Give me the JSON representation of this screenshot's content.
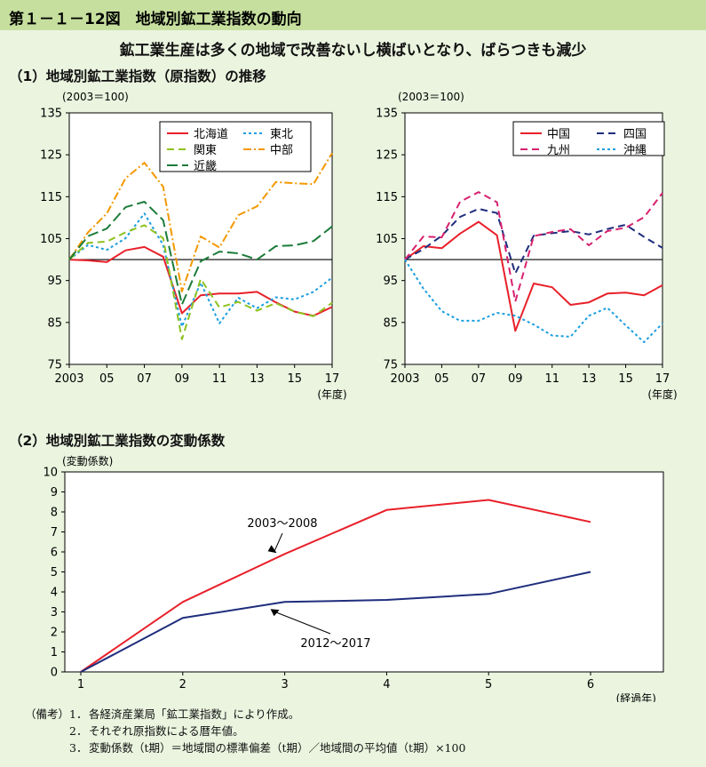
{
  "header": {
    "title": "第１－１－12図　地域別鉱工業指数の動向",
    "subtitle": "鉱工業生産は多くの地域で改善ないし横ばいとなり、ばらつきも減少",
    "section1": "（1）地域別鉱工業指数（原指数）の推移",
    "section2": "（2）地域別鉱工業指数の変動係数"
  },
  "chart_data": [
    {
      "type": "line",
      "unit_label": "(2003＝100)",
      "x_tick_labels": [
        "2003",
        "05",
        "07",
        "09",
        "11",
        "13",
        "15",
        "17"
      ],
      "x_unit": "(年度)",
      "y_ticks": [
        "135",
        "125",
        "115",
        "105",
        "95",
        "85",
        "75"
      ],
      "ylim": [
        75,
        135
      ],
      "baseline": 100,
      "x": [
        2003,
        2004,
        2005,
        2006,
        2007,
        2008,
        2009,
        2010,
        2011,
        2012,
        2013,
        2014,
        2015,
        2016,
        2017
      ],
      "series": [
        {
          "name": "北海道",
          "color": "#e8202a",
          "dash": "",
          "values": [
            100,
            99.8,
            99.4,
            102.2,
            103.0,
            100.7,
            87.2,
            91.5,
            91.9,
            91.9,
            92.3,
            89.8,
            87.6,
            86.6,
            88.7
          ]
        },
        {
          "name": "東北",
          "color": "#1a9ee0",
          "dash": "3,3",
          "values": [
            100,
            103.5,
            102.3,
            105.1,
            111.0,
            103.5,
            84.0,
            94.5,
            84.8,
            90.9,
            88.4,
            91.0,
            90.5,
            92.3,
            95.7
          ]
        },
        {
          "name": "関東",
          "color": "#8dc21f",
          "dash": "8,5",
          "values": [
            100,
            104.0,
            104.3,
            106.5,
            108.2,
            105.1,
            81.0,
            95.4,
            88.6,
            89.9,
            87.8,
            89.6,
            87.6,
            86.5,
            89.7
          ]
        },
        {
          "name": "中部",
          "color": "#f39800",
          "dash": "9,3,2,3",
          "values": [
            100,
            106.5,
            111.0,
            119.4,
            123.1,
            117.4,
            92.4,
            105.5,
            102.9,
            110.6,
            112.7,
            118.5,
            118.2,
            118.0,
            125.4
          ]
        },
        {
          "name": "近畿",
          "color": "#1c7c3a",
          "dash": "12,5",
          "values": [
            100,
            105.6,
            107.4,
            112.5,
            113.8,
            109.4,
            89.3,
            99.6,
            101.9,
            101.5,
            100.0,
            103.2,
            103.4,
            104.4,
            107.9
          ]
        }
      ]
    },
    {
      "type": "line",
      "unit_label": "(2003＝100)",
      "x_tick_labels": [
        "2003",
        "05",
        "07",
        "09",
        "11",
        "13",
        "15",
        "17"
      ],
      "x_unit": "(年度)",
      "y_ticks": [
        "135",
        "125",
        "115",
        "105",
        "95",
        "85",
        "75"
      ],
      "ylim": [
        75,
        135
      ],
      "baseline": 100,
      "x": [
        2003,
        2004,
        2005,
        2006,
        2007,
        2008,
        2009,
        2010,
        2011,
        2012,
        2013,
        2014,
        2015,
        2016,
        2017
      ],
      "series": [
        {
          "name": "中国",
          "color": "#e8202a",
          "dash": "",
          "values": [
            100,
            103.2,
            102.7,
            106.2,
            109.0,
            105.8,
            83.0,
            94.3,
            93.4,
            89.2,
            89.8,
            91.9,
            92.1,
            91.5,
            93.9
          ]
        },
        {
          "name": "四国",
          "color": "#1f2d7d",
          "dash": "8,5",
          "values": [
            100,
            102.5,
            105.7,
            110.2,
            112.1,
            111.1,
            96.7,
            105.7,
            106.3,
            106.8,
            106.0,
            107.3,
            108.3,
            105.4,
            102.8
          ]
        },
        {
          "name": "九州",
          "color": "#d7216f",
          "dash": "8,5",
          "values": [
            100,
            105.5,
            105.3,
            113.8,
            116.1,
            113.7,
            90.0,
            105.6,
            106.6,
            107.3,
            103.4,
            106.8,
            107.6,
            110.1,
            115.9
          ]
        },
        {
          "name": "沖縄",
          "color": "#1a9ee0",
          "dash": "3,3",
          "values": [
            100,
            93.1,
            87.7,
            85.4,
            85.4,
            87.3,
            86.6,
            84.5,
            81.9,
            81.6,
            86.6,
            88.5,
            84.3,
            80.3,
            84.8
          ]
        }
      ]
    },
    {
      "type": "line",
      "unit_label": "(変動係数)",
      "x_unit": "(経過年)",
      "x": [
        1,
        2,
        3,
        4,
        5,
        6
      ],
      "y_ticks": [
        "0",
        "1",
        "2",
        "3",
        "4",
        "5",
        "6",
        "7",
        "8",
        "9",
        "10"
      ],
      "ylim": [
        0,
        10
      ],
      "series": [
        {
          "name": "2003～2008",
          "color": "#e8202a",
          "values": [
            0,
            3.5,
            5.9,
            8.1,
            8.6,
            7.5
          ]
        },
        {
          "name": "2012～2017",
          "color": "#1f2d7d",
          "values": [
            0,
            2.7,
            3.5,
            3.6,
            3.9,
            5.0
          ]
        }
      ]
    }
  ],
  "notes": {
    "label": "（備考）",
    "items": [
      {
        "num": "1．",
        "text": "各経済産業局「鉱工業指数」により作成。"
      },
      {
        "num": "2．",
        "text": "それぞれ原指数による暦年値。"
      },
      {
        "num": "3．",
        "text": "変動係数（t期）＝地域間の標準偏差（t期）／地域間の平均値（t期）×100"
      }
    ]
  }
}
